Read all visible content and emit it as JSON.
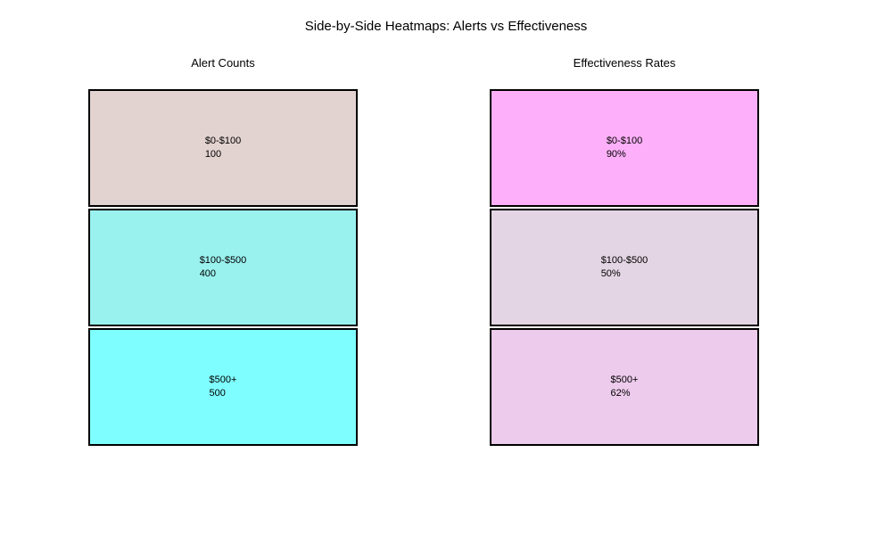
{
  "title": "Side-by-Side Heatmaps: Alerts vs Effectiveness",
  "chart_data": {
    "type": "heatmap",
    "title": "Side-by-Side Heatmaps: Alerts vs Effectiveness",
    "layout": "two side-by-side single-column heatmaps, 3 rows each, black cell borders, white background, labels centered inside cells",
    "categories": [
      "$0-$100",
      "$100-$500",
      "$500+"
    ],
    "series": [
      {
        "name": "Alert Counts",
        "values": [
          100,
          400,
          500
        ]
      },
      {
        "name": "Effectiveness Rates",
        "values": [
          "90%",
          "50%",
          "62%"
        ]
      }
    ],
    "border_color": "#000000",
    "background": "#ffffff",
    "panels": [
      {
        "title": "Alert Counts",
        "cells": [
          {
            "label": "$0-$100",
            "value": "100",
            "color": "#e2d2d0"
          },
          {
            "label": "$100-$500",
            "value": "400",
            "color": "#9af2ef"
          },
          {
            "label": "$500+",
            "value": "500",
            "color": "#7efeff"
          }
        ]
      },
      {
        "title": "Effectiveness Rates",
        "cells": [
          {
            "label": "$0-$100",
            "value": "90%",
            "color": "#fdb0f9"
          },
          {
            "label": "$100-$500",
            "value": "50%",
            "color": "#e3d5e3"
          },
          {
            "label": "$500+",
            "value": "62%",
            "color": "#edcbec"
          }
        ]
      }
    ]
  }
}
